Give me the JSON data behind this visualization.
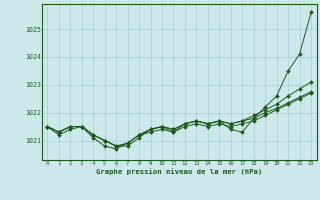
{
  "background_color": "#cce8eb",
  "grid_color": "#aacccc",
  "line_color": "#1a5c1a",
  "title": "Graphe pression niveau de la mer (hPa)",
  "xlim": [
    -0.5,
    23.5
  ],
  "ylim": [
    1020.3,
    1025.9
  ],
  "yticks": [
    1021,
    1022,
    1023,
    1024,
    1025
  ],
  "xticks": [
    0,
    1,
    2,
    3,
    4,
    5,
    6,
    7,
    8,
    9,
    10,
    11,
    12,
    13,
    14,
    15,
    16,
    17,
    18,
    19,
    20,
    21,
    22,
    23
  ],
  "hours": [
    0,
    1,
    2,
    3,
    4,
    5,
    6,
    7,
    8,
    9,
    10,
    11,
    12,
    13,
    14,
    15,
    16,
    17,
    18,
    19,
    20,
    21,
    22,
    23
  ],
  "line1": [
    1021.5,
    1021.3,
    1021.5,
    1021.5,
    1021.2,
    1021.0,
    1020.8,
    1020.8,
    1021.1,
    1021.4,
    1021.5,
    1021.3,
    1021.6,
    1021.7,
    1021.6,
    1021.7,
    1021.4,
    1021.3,
    1021.8,
    1022.2,
    1022.6,
    1023.5,
    1024.1,
    1025.6
  ],
  "line2": [
    1021.5,
    1021.3,
    1021.5,
    1021.5,
    1021.2,
    1021.0,
    1020.8,
    1020.9,
    1021.2,
    1021.4,
    1021.5,
    1021.4,
    1021.6,
    1021.7,
    1021.6,
    1021.7,
    1021.6,
    1021.7,
    1021.9,
    1022.1,
    1022.3,
    1022.6,
    1022.85,
    1023.1
  ],
  "line3": [
    1021.5,
    1021.3,
    1021.5,
    1021.5,
    1021.2,
    1021.0,
    1020.8,
    1020.9,
    1021.2,
    1021.4,
    1021.5,
    1021.4,
    1021.6,
    1021.7,
    1021.6,
    1021.7,
    1021.6,
    1021.7,
    1021.8,
    1022.0,
    1022.15,
    1022.35,
    1022.55,
    1022.75
  ],
  "line4": [
    1021.5,
    1021.2,
    1021.4,
    1021.5,
    1021.1,
    1020.8,
    1020.7,
    1020.9,
    1021.2,
    1021.3,
    1021.4,
    1021.3,
    1021.5,
    1021.6,
    1021.5,
    1021.6,
    1021.5,
    1021.6,
    1021.7,
    1021.9,
    1022.1,
    1022.3,
    1022.5,
    1022.7
  ]
}
